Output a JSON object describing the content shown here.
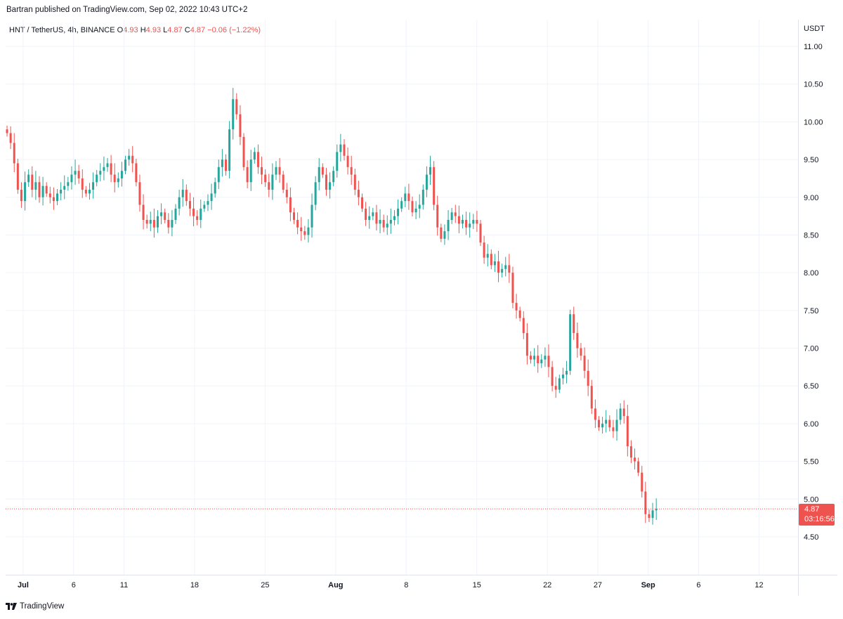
{
  "header": {
    "published": "Bartran published on TradingView.com, Sep 02, 2022 10:43 UTC+2"
  },
  "symbol": {
    "name": "HNT / TetherUS, 4h, BINANCE",
    "o_label": "O",
    "o_value": "4.93",
    "h_label": "H",
    "h_value": "4.93",
    "l_label": "L",
    "l_value": "4.87",
    "c_label": "C",
    "c_value": "4.87",
    "change": "−0.06 (−1.22%)"
  },
  "price_axis": {
    "currency": "USDT"
  },
  "last_price": {
    "value": "4.87",
    "countdown": "03:16:56"
  },
  "footer": {
    "brand": "TradingView"
  },
  "colors": {
    "up": "#26a69a",
    "down": "#ef5350",
    "grid": "#f0f3fa",
    "axis": "#e0e3eb"
  },
  "chart_data": {
    "type": "candlestick",
    "interval": "4h",
    "yticks": [
      "11.00",
      "10.50",
      "10.00",
      "9.50",
      "9.00",
      "8.50",
      "8.00",
      "7.50",
      "7.00",
      "6.50",
      "6.00",
      "5.50",
      "5.00",
      "4.50"
    ],
    "ylim": [
      3.9,
      11.3
    ],
    "xticks": [
      {
        "label": "Jul",
        "day": 0,
        "bold": true
      },
      {
        "label": "6",
        "day": 5
      },
      {
        "label": "11",
        "day": 10
      },
      {
        "label": "18",
        "day": 17
      },
      {
        "label": "25",
        "day": 24
      },
      {
        "label": "Aug",
        "day": 31,
        "bold": true
      },
      {
        "label": "8",
        "day": 38
      },
      {
        "label": "15",
        "day": 45
      },
      {
        "label": "22",
        "day": 52
      },
      {
        "label": "27",
        "day": 57
      },
      {
        "label": "Sep",
        "day": 62,
        "bold": true
      },
      {
        "label": "6",
        "day": 67
      },
      {
        "label": "12",
        "day": 73
      }
    ],
    "closes": [
      9.85,
      9.72,
      9.45,
      9.1,
      8.95,
      9.2,
      9.3,
      9.1,
      9.2,
      9.0,
      9.15,
      9.05,
      9.0,
      8.95,
      9.05,
      9.1,
      9.15,
      9.2,
      9.3,
      9.35,
      9.25,
      9.1,
      9.05,
      9.1,
      9.2,
      9.3,
      9.35,
      9.4,
      9.45,
      9.3,
      9.2,
      9.25,
      9.35,
      9.5,
      9.55,
      9.45,
      9.2,
      8.9,
      8.7,
      8.65,
      8.7,
      8.6,
      8.75,
      8.8,
      8.7,
      8.6,
      8.7,
      8.85,
      9.0,
      9.1,
      8.95,
      8.85,
      8.75,
      8.7,
      8.85,
      8.9,
      8.95,
      9.05,
      9.2,
      9.4,
      9.5,
      9.35,
      9.9,
      10.3,
      10.1,
      9.8,
      9.4,
      9.2,
      9.5,
      9.6,
      9.4,
      9.3,
      9.2,
      9.1,
      9.3,
      9.4,
      9.3,
      9.1,
      9.0,
      8.8,
      8.7,
      8.6,
      8.55,
      8.5,
      8.6,
      8.9,
      9.2,
      9.4,
      9.3,
      9.1,
      9.2,
      9.35,
      9.6,
      9.7,
      9.55,
      9.4,
      9.3,
      9.1,
      9.0,
      8.85,
      8.7,
      8.75,
      8.8,
      8.65,
      8.7,
      8.6,
      8.65,
      8.7,
      8.75,
      8.85,
      8.95,
      9.05,
      8.95,
      8.8,
      8.85,
      8.9,
      9.1,
      9.3,
      9.4,
      8.9,
      8.6,
      8.45,
      8.55,
      8.7,
      8.8,
      8.75,
      8.65,
      8.7,
      8.6,
      8.65,
      8.7,
      8.65,
      8.4,
      8.2,
      8.25,
      8.1,
      8.15,
      8.0,
      8.05,
      8.1,
      8.0,
      7.6,
      7.5,
      7.4,
      7.2,
      6.9,
      6.85,
      6.9,
      6.8,
      6.85,
      6.9,
      6.75,
      6.5,
      6.45,
      6.6,
      6.65,
      6.7,
      7.45,
      7.2,
      7.0,
      6.9,
      6.7,
      6.5,
      6.2,
      6.05,
      5.95,
      6.0,
      6.05,
      5.95,
      5.9,
      6.05,
      6.2,
      6.1,
      5.7,
      5.55,
      5.5,
      5.35,
      5.1,
      4.8,
      4.75,
      4.85,
      4.87
    ],
    "last_value": 4.87
  }
}
